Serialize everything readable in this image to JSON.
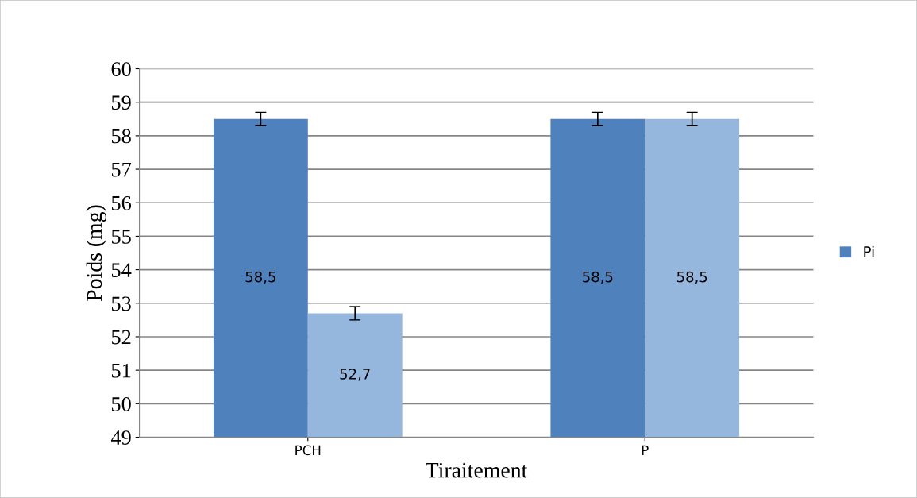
{
  "chart_data": {
    "type": "bar",
    "xlabel": "Tiraitement",
    "ylabel": "Poids (mg)",
    "categories": [
      "PCH",
      "P"
    ],
    "series": [
      {
        "name": "Pi",
        "color": "#4f81bd",
        "values": [
          58.5,
          58.5
        ],
        "errors": [
          0.2,
          0.2
        ],
        "value_labels": [
          "58,5",
          "58,5"
        ]
      },
      {
        "color": "#95b7de",
        "values": [
          52.7,
          58.5
        ],
        "errors": [
          0.2,
          0.2
        ],
        "value_labels": [
          "52,7",
          "58,5"
        ]
      }
    ],
    "ylim": [
      49,
      60
    ],
    "yticks": [
      49,
      50,
      51,
      52,
      53,
      54,
      55,
      56,
      57,
      58,
      59,
      60
    ],
    "grid": "y",
    "legend": "right"
  }
}
